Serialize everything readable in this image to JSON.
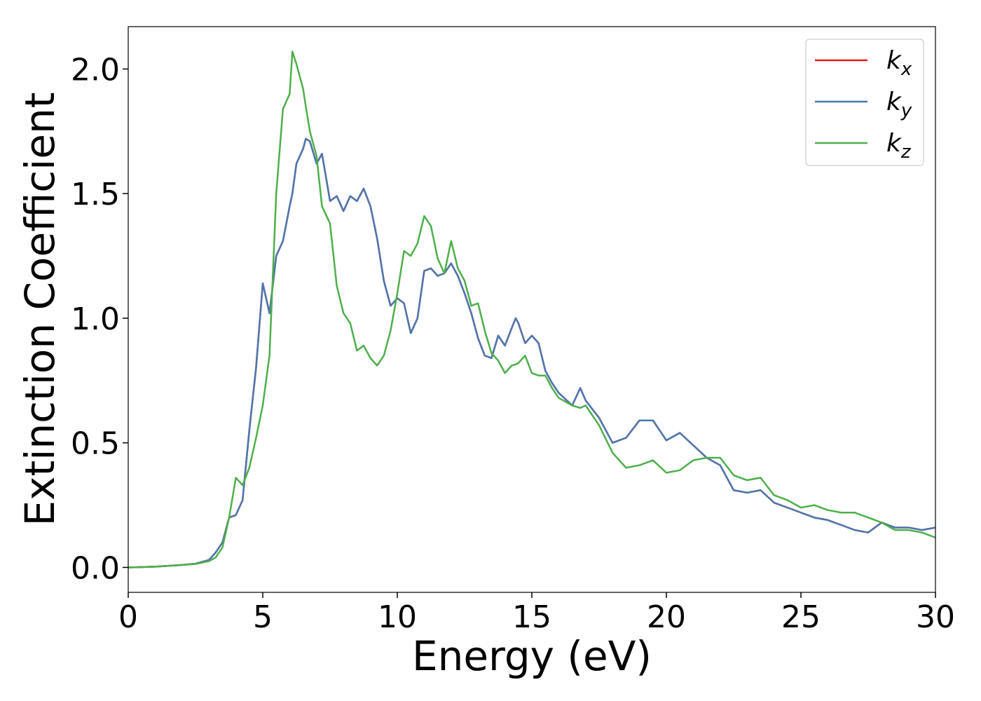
{
  "chart_data": {
    "type": "line",
    "xlabel": "Energy (eV)",
    "ylabel": "Extinction Coefficient",
    "xlim": [
      0,
      30
    ],
    "ylim": [
      -0.1,
      2.17
    ],
    "xticks": [
      0,
      5,
      10,
      15,
      20,
      25,
      30
    ],
    "yticks": [
      {
        "value": 0,
        "label": "0.0"
      },
      0.5,
      {
        "value": 1,
        "label": "1.0"
      },
      1.5,
      {
        "value": 2,
        "label": "2.0"
      }
    ],
    "grid": false,
    "legend": "upper right",
    "x": [
      0,
      1,
      2,
      2.5,
      3,
      3.25,
      3.5,
      3.75,
      4,
      4.25,
      4.5,
      4.75,
      5,
      5.25,
      5.5,
      5.75,
      6,
      6.1,
      6.25,
      6.5,
      6.6,
      6.75,
      7,
      7.2,
      7.5,
      7.75,
      8,
      8.25,
      8.5,
      8.75,
      9,
      9.25,
      9.5,
      9.75,
      10,
      10.25,
      10.5,
      10.75,
      11,
      11.25,
      11.5,
      11.75,
      12,
      12.25,
      12.5,
      12.75,
      13,
      13.25,
      13.5,
      13.75,
      14,
      14.25,
      14.4,
      14.5,
      14.75,
      15,
      15.25,
      15.5,
      15.75,
      16,
      16.5,
      16.8,
      17,
      17.5,
      18,
      18.5,
      19,
      19.5,
      20,
      20.5,
      21,
      21.5,
      22,
      22.5,
      23,
      23.5,
      24,
      24.5,
      25,
      25.5,
      26,
      26.5,
      27,
      27.5,
      28,
      28.5,
      29,
      29.5,
      30
    ],
    "series": [
      {
        "name": "kx",
        "color": "#e41a1c",
        "values": [
          0,
          0.003,
          0.01,
          0.015,
          0.03,
          0.06,
          0.1,
          0.2,
          0.21,
          0.27,
          0.55,
          0.8,
          1.14,
          1.02,
          1.25,
          1.31,
          1.45,
          1.5,
          1.62,
          1.68,
          1.72,
          1.71,
          1.62,
          1.66,
          1.47,
          1.49,
          1.43,
          1.49,
          1.47,
          1.52,
          1.45,
          1.32,
          1.15,
          1.05,
          1.08,
          1.06,
          0.94,
          1.0,
          1.19,
          1.2,
          1.17,
          1.18,
          1.22,
          1.17,
          1.1,
          1.02,
          0.92,
          0.85,
          0.84,
          0.93,
          0.89,
          0.96,
          1.0,
          0.98,
          0.9,
          0.93,
          0.9,
          0.79,
          0.74,
          0.7,
          0.65,
          0.72,
          0.67,
          0.6,
          0.5,
          0.52,
          0.59,
          0.59,
          0.51,
          0.54,
          0.49,
          0.44,
          0.41,
          0.31,
          0.3,
          0.31,
          0.26,
          0.24,
          0.22,
          0.2,
          0.19,
          0.17,
          0.15,
          0.14,
          0.18,
          0.16,
          0.16,
          0.15,
          0.16
        ]
      },
      {
        "name": "ky",
        "color": "#4a78ae",
        "values": [
          0,
          0.003,
          0.01,
          0.015,
          0.03,
          0.06,
          0.1,
          0.2,
          0.21,
          0.27,
          0.55,
          0.8,
          1.14,
          1.02,
          1.25,
          1.31,
          1.45,
          1.5,
          1.62,
          1.68,
          1.72,
          1.71,
          1.62,
          1.66,
          1.47,
          1.49,
          1.43,
          1.49,
          1.47,
          1.52,
          1.45,
          1.32,
          1.15,
          1.05,
          1.08,
          1.06,
          0.94,
          1.0,
          1.19,
          1.2,
          1.17,
          1.18,
          1.22,
          1.17,
          1.1,
          1.02,
          0.92,
          0.85,
          0.84,
          0.93,
          0.89,
          0.96,
          1.0,
          0.98,
          0.9,
          0.93,
          0.9,
          0.79,
          0.74,
          0.7,
          0.65,
          0.72,
          0.67,
          0.6,
          0.5,
          0.52,
          0.59,
          0.59,
          0.51,
          0.54,
          0.49,
          0.44,
          0.41,
          0.31,
          0.3,
          0.31,
          0.26,
          0.24,
          0.22,
          0.2,
          0.19,
          0.17,
          0.15,
          0.14,
          0.18,
          0.16,
          0.16,
          0.15,
          0.16
        ]
      },
      {
        "name": "kz",
        "color": "#4daf4a",
        "values": [
          0,
          0.003,
          0.01,
          0.014,
          0.025,
          0.04,
          0.08,
          0.2,
          0.36,
          0.33,
          0.4,
          0.52,
          0.65,
          0.85,
          1.5,
          1.84,
          1.9,
          2.07,
          2.02,
          1.92,
          1.85,
          1.75,
          1.65,
          1.45,
          1.38,
          1.13,
          1.02,
          0.98,
          0.87,
          0.89,
          0.84,
          0.81,
          0.85,
          0.95,
          1.1,
          1.27,
          1.25,
          1.3,
          1.41,
          1.37,
          1.24,
          1.18,
          1.31,
          1.2,
          1.15,
          1.05,
          1.06,
          0.95,
          0.86,
          0.83,
          0.78,
          0.81,
          0.815,
          0.82,
          0.85,
          0.78,
          0.77,
          0.77,
          0.72,
          0.68,
          0.65,
          0.64,
          0.65,
          0.57,
          0.46,
          0.4,
          0.41,
          0.43,
          0.38,
          0.39,
          0.43,
          0.44,
          0.44,
          0.37,
          0.35,
          0.36,
          0.29,
          0.27,
          0.24,
          0.25,
          0.23,
          0.22,
          0.22,
          0.2,
          0.18,
          0.15,
          0.15,
          0.14,
          0.12
        ]
      }
    ]
  }
}
